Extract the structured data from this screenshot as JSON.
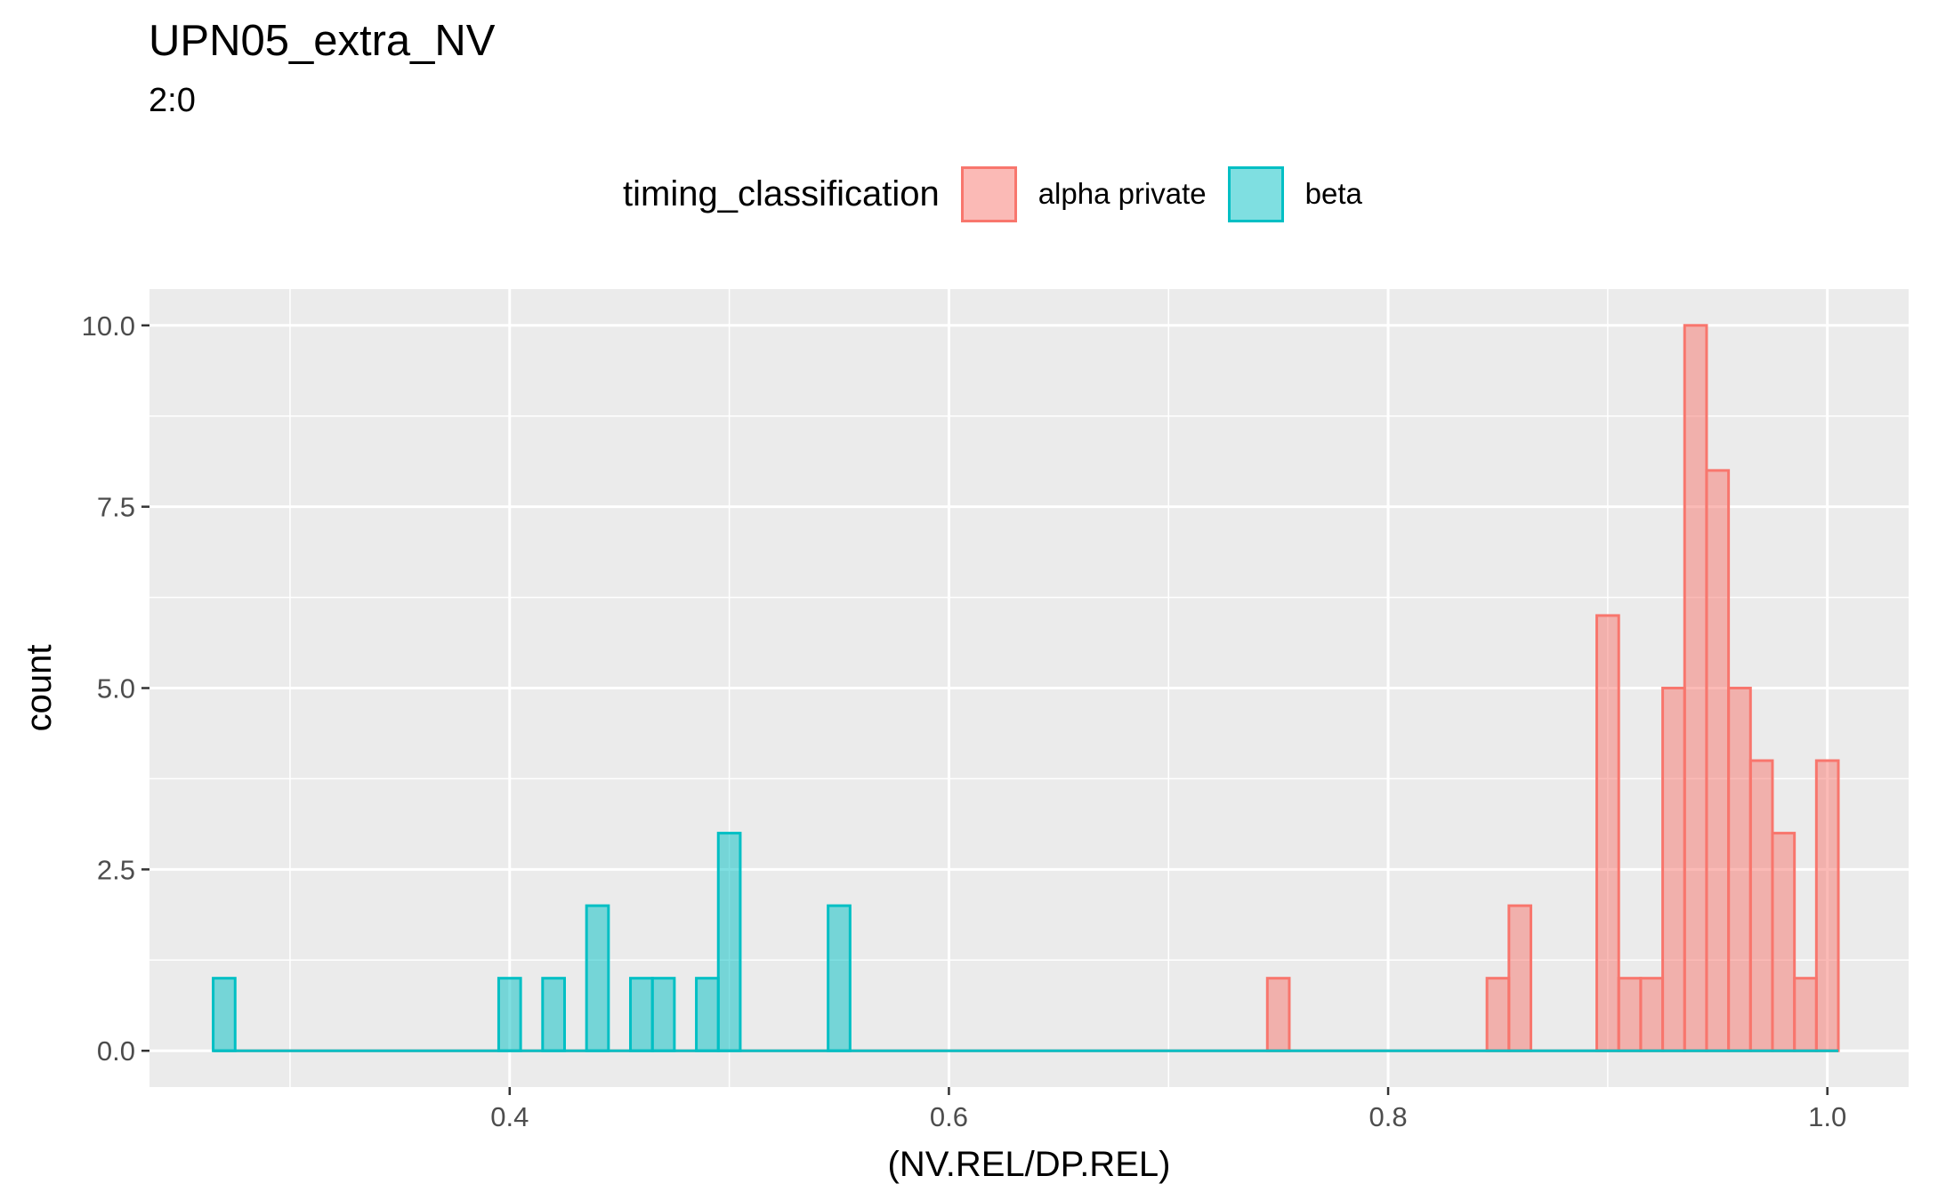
{
  "chart_data": {
    "type": "bar",
    "title": "UPN05_extra_NV",
    "subtitle": "2:0",
    "xlabel": "(NV.REL/DP.REL)",
    "ylabel": "count",
    "xlim": [
      0.236,
      1.037
    ],
    "ylim": [
      -0.5,
      10.5
    ],
    "x_ticks": [
      0.4,
      0.6,
      0.8,
      1.0
    ],
    "x_tick_labels": [
      "0.4",
      "0.6",
      "0.8",
      "1.0"
    ],
    "y_ticks": [
      0,
      2.5,
      5,
      7.5,
      10
    ],
    "y_tick_labels": [
      "0.0",
      "2.5",
      "5.0",
      "7.5",
      "10.0"
    ],
    "grid": true,
    "legend_position": "top",
    "legend_title": "timing_classification",
    "bin_width": 0.01,
    "series": [
      {
        "name": "alpha private",
        "fill": "#F8766D",
        "x_start": 0.27,
        "values": [
          0,
          0,
          0,
          0,
          0,
          0,
          0,
          0,
          0,
          0,
          0,
          0,
          0,
          0,
          0,
          0,
          0,
          0,
          0,
          0,
          0,
          0,
          0,
          0,
          0,
          0,
          0,
          0,
          0,
          0,
          0,
          0,
          0,
          0,
          0,
          0,
          0,
          0,
          0,
          0,
          0,
          0,
          0,
          0,
          0,
          0,
          0,
          0,
          1,
          0,
          0,
          0,
          0,
          0,
          0,
          0,
          0,
          0,
          1,
          2,
          0,
          0,
          0,
          6,
          1,
          1,
          5,
          10,
          8,
          5,
          4,
          3,
          1,
          4
        ]
      },
      {
        "name": "beta",
        "fill": "#00BFC4",
        "x_start": 0.27,
        "values": [
          1,
          0,
          0,
          0,
          0,
          0,
          0,
          0,
          0,
          0,
          0,
          0,
          0,
          1,
          0,
          1,
          0,
          2,
          0,
          1,
          1,
          0,
          1,
          3,
          0,
          0,
          0,
          0,
          2,
          0,
          0,
          0,
          0,
          0,
          0,
          0,
          0,
          0,
          0,
          0,
          0,
          0,
          0,
          0,
          0,
          0,
          0,
          0,
          0,
          0,
          0,
          0,
          0,
          0,
          0,
          0,
          0,
          0,
          0,
          0,
          0,
          0,
          0,
          0,
          0,
          0,
          0,
          0,
          0,
          0,
          0,
          0,
          0,
          0
        ]
      }
    ]
  }
}
